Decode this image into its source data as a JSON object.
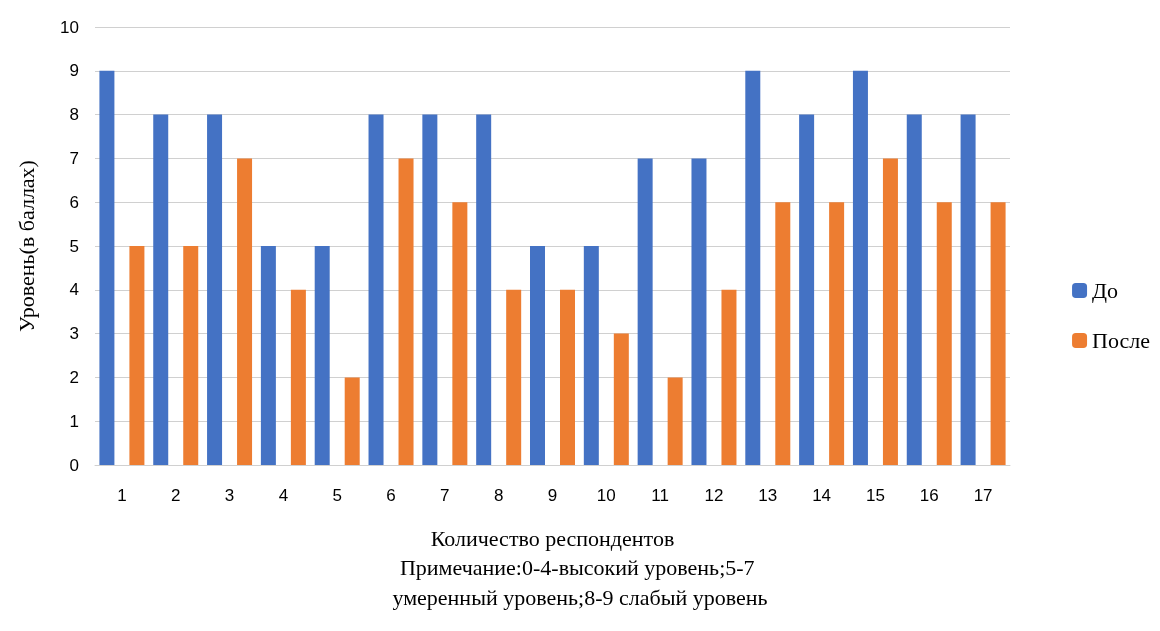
{
  "chart_data": {
    "type": "bar",
    "xlabel": "Количество респондентов",
    "ylabel": "Уровень(в баллах)",
    "annotations": [
      "Примечание:0-4-высокий уровень;5-7 умеренный уровень;8-9 слабый уровень"
    ],
    "categories": [
      "1",
      "2",
      "3",
      "4",
      "5",
      "6",
      "7",
      "8",
      "9",
      "10",
      "11",
      "12",
      "13",
      "14",
      "15",
      "16",
      "17"
    ],
    "series": [
      {
        "name": "До",
        "color": "#4472c4",
        "values": [
          9,
          8,
          8,
          5,
          5,
          8,
          8,
          8,
          5,
          5,
          7,
          7,
          9,
          8,
          9,
          8,
          8
        ]
      },
      {
        "name": "После",
        "color": "#ed7d31",
        "values": [
          5,
          5,
          7,
          4,
          2,
          7,
          6,
          4,
          4,
          3,
          2,
          4,
          6,
          6,
          7,
          6,
          6
        ]
      }
    ],
    "ylim": [
      0,
      10
    ],
    "yticks": [
      0,
      1,
      2,
      3,
      4,
      5,
      6,
      7,
      8,
      9,
      10
    ],
    "grid": "y",
    "legend": "right"
  }
}
